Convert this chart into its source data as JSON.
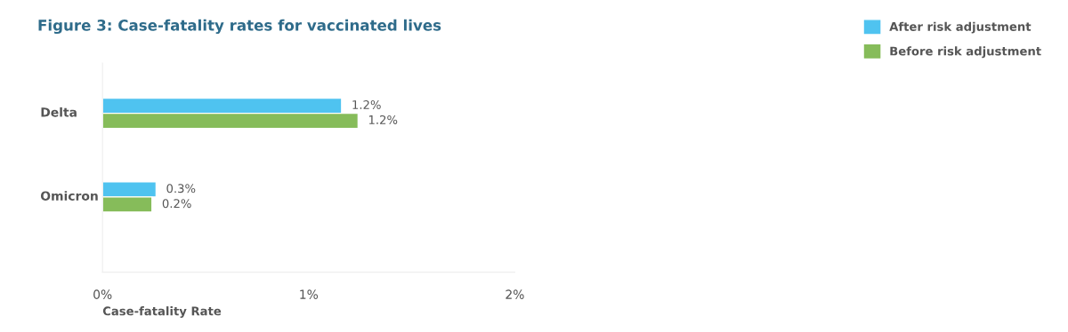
{
  "chart_data": {
    "type": "bar",
    "orientation": "horizontal",
    "title": "Figure 3: Case-fatality rates for vaccinated lives",
    "xlabel": "Case-fatality Rate",
    "categories": [
      "Delta",
      "Omicron"
    ],
    "series": [
      {
        "name": "After risk adjustment",
        "color": "#4fc3f0",
        "values": [
          1.16,
          0.26
        ],
        "value_labels": [
          "1.2%",
          "0.3%"
        ]
      },
      {
        "name": "Before risk adjustment",
        "color": "#86bc5a",
        "values": [
          1.24,
          0.24
        ],
        "value_labels": [
          "1.2%",
          "0.2%"
        ]
      }
    ],
    "xlim": [
      0,
      2
    ],
    "xticks": [
      {
        "value": 0,
        "label": "0%"
      },
      {
        "value": 1,
        "label": "1%"
      },
      {
        "value": 2,
        "label": "2%"
      }
    ],
    "grid": false,
    "legend": "top right"
  }
}
